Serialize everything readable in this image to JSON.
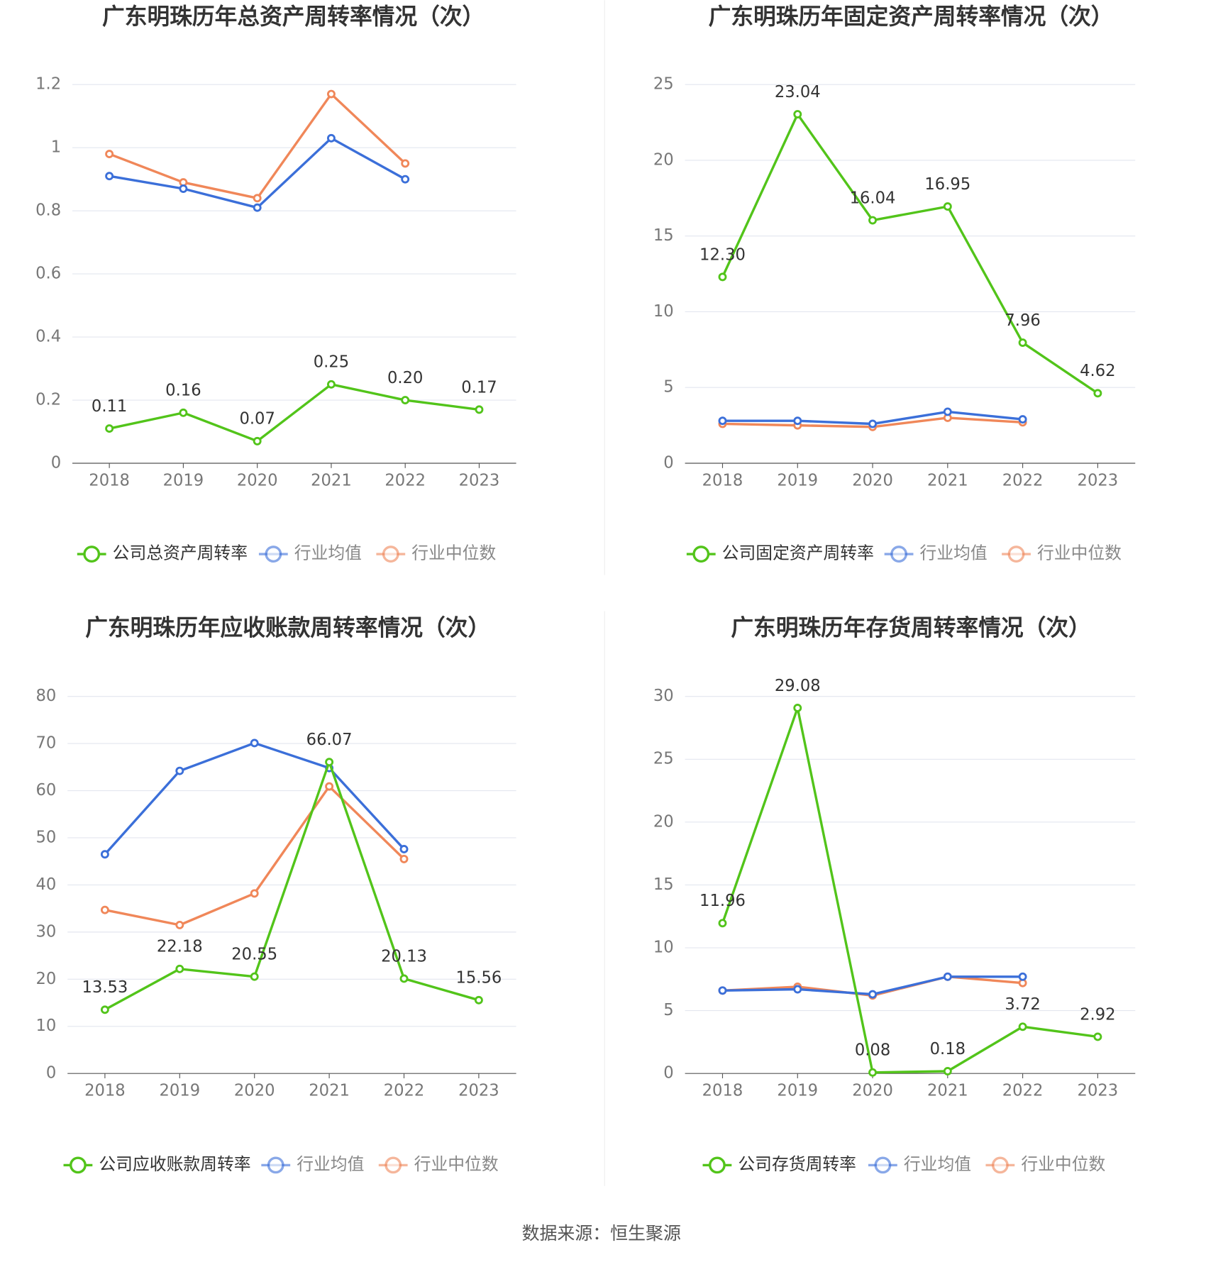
{
  "chart_data": [
    {
      "type": "line",
      "title": "广东明珠历年总资产周转率情况（次）",
      "categories": [
        "2018",
        "2019",
        "2020",
        "2021",
        "2022",
        "2023"
      ],
      "series": [
        {
          "name": "公司总资产周转率",
          "color": "#52c41a",
          "values": [
            0.11,
            0.16,
            0.07,
            0.25,
            0.2,
            0.17
          ],
          "value_labels": [
            "0.11",
            "0.16",
            "0.07",
            "0.25",
            "0.20",
            "0.17"
          ]
        },
        {
          "name": "行业均值",
          "color": "#3b6fd9",
          "values": [
            0.91,
            0.87,
            0.81,
            1.03,
            0.9,
            null
          ]
        },
        {
          "name": "行业中位数",
          "color": "#f08759",
          "values": [
            0.98,
            0.89,
            0.84,
            1.17,
            0.95,
            null
          ]
        }
      ],
      "ylim": [
        0,
        1.2
      ],
      "yticks": [
        0,
        0.2,
        0.4,
        0.6,
        0.8,
        1,
        1.2
      ],
      "grid": true
    },
    {
      "type": "line",
      "title": "广东明珠历年固定资产周转率情况（次）",
      "categories": [
        "2018",
        "2019",
        "2020",
        "2021",
        "2022",
        "2023"
      ],
      "series": [
        {
          "name": "公司固定资产周转率",
          "color": "#52c41a",
          "values": [
            12.3,
            23.04,
            16.04,
            16.95,
            7.96,
            4.62
          ],
          "value_labels": [
            "12.30",
            "23.04",
            "16.04",
            "16.95",
            "7.96",
            "4.62"
          ]
        },
        {
          "name": "行业均值",
          "color": "#3b6fd9",
          "values": [
            2.8,
            2.8,
            2.6,
            3.4,
            2.9,
            null
          ]
        },
        {
          "name": "行业中位数",
          "color": "#f08759",
          "values": [
            2.6,
            2.5,
            2.4,
            3.0,
            2.7,
            null
          ]
        }
      ],
      "ylim": [
        0,
        25
      ],
      "yticks": [
        0,
        5,
        10,
        15,
        20,
        25
      ],
      "grid": true
    },
    {
      "type": "line",
      "title": "广东明珠历年应收账款周转率情况（次）",
      "categories": [
        "2018",
        "2019",
        "2020",
        "2021",
        "2022",
        "2023"
      ],
      "series": [
        {
          "name": "公司应收账款周转率",
          "color": "#52c41a",
          "values": [
            13.53,
            22.18,
            20.55,
            66.07,
            20.13,
            15.56
          ],
          "value_labels": [
            "13.53",
            "22.18",
            "20.55",
            "66.07",
            "20.13",
            "15.56"
          ]
        },
        {
          "name": "行业均值",
          "color": "#3b6fd9",
          "values": [
            46.5,
            64.2,
            70.1,
            64.8,
            47.6,
            null
          ]
        },
        {
          "name": "行业中位数",
          "color": "#f08759",
          "values": [
            34.7,
            31.5,
            38.2,
            60.9,
            45.5,
            null
          ]
        }
      ],
      "ylim": [
        0,
        80
      ],
      "yticks": [
        0,
        10,
        20,
        30,
        40,
        50,
        60,
        70,
        80
      ],
      "grid": true
    },
    {
      "type": "line",
      "title": "广东明珠历年存货周转率情况（次）",
      "categories": [
        "2018",
        "2019",
        "2020",
        "2021",
        "2022",
        "2023"
      ],
      "series": [
        {
          "name": "公司存货周转率",
          "color": "#52c41a",
          "values": [
            11.96,
            29.08,
            0.08,
            0.18,
            3.72,
            2.92
          ],
          "value_labels": [
            "11.96",
            "29.08",
            "0.08",
            "0.18",
            "3.72",
            "2.92"
          ]
        },
        {
          "name": "行业均值",
          "color": "#3b6fd9",
          "values": [
            6.6,
            6.7,
            6.3,
            7.7,
            7.7,
            null
          ]
        },
        {
          "name": "行业中位数",
          "color": "#f08759",
          "values": [
            6.6,
            6.9,
            6.2,
            7.7,
            7.2,
            null
          ]
        }
      ],
      "ylim": [
        0,
        30
      ],
      "yticks": [
        0,
        5,
        10,
        15,
        20,
        25,
        30
      ],
      "grid": true
    }
  ],
  "source": "数据来源：恒生聚源"
}
